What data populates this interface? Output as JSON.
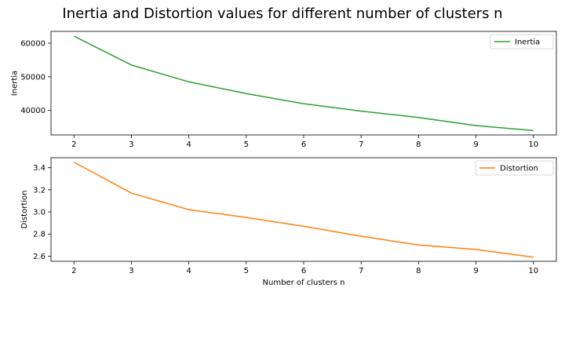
{
  "title": "Inertia and Distortion values for different number of clusters n",
  "chart_data": [
    {
      "type": "line",
      "x": [
        2,
        3,
        4,
        5,
        6,
        7,
        8,
        9,
        10
      ],
      "series": [
        {
          "name": "Inertia",
          "color": "#2ca02c",
          "values": [
            62100,
            53500,
            48500,
            45000,
            42000,
            39800,
            37900,
            35500,
            34000
          ]
        }
      ],
      "xlabel": "",
      "ylabel": "Inertia",
      "xlim": [
        1.6,
        10.4
      ],
      "ylim": [
        32700,
        63500
      ],
      "xticks": [
        2,
        3,
        4,
        5,
        6,
        7,
        8,
        9,
        10
      ],
      "yticks": [
        40000,
        50000,
        60000
      ],
      "legend": "upper right",
      "grid": false
    },
    {
      "type": "line",
      "x": [
        2,
        3,
        4,
        5,
        6,
        7,
        8,
        9,
        10
      ],
      "series": [
        {
          "name": "Distortion",
          "color": "#ff7f0e",
          "values": [
            3.45,
            3.17,
            3.02,
            2.95,
            2.87,
            2.78,
            2.7,
            2.66,
            2.59
          ]
        }
      ],
      "xlabel": "Number of clusters n",
      "ylabel": "Distortion",
      "xlim": [
        1.6,
        10.4
      ],
      "ylim": [
        2.553,
        3.49
      ],
      "xticks": [
        2,
        3,
        4,
        5,
        6,
        7,
        8,
        9,
        10
      ],
      "yticks": [
        2.6,
        2.8,
        3.0,
        3.2,
        3.4
      ],
      "legend": "upper right",
      "grid": false
    }
  ]
}
